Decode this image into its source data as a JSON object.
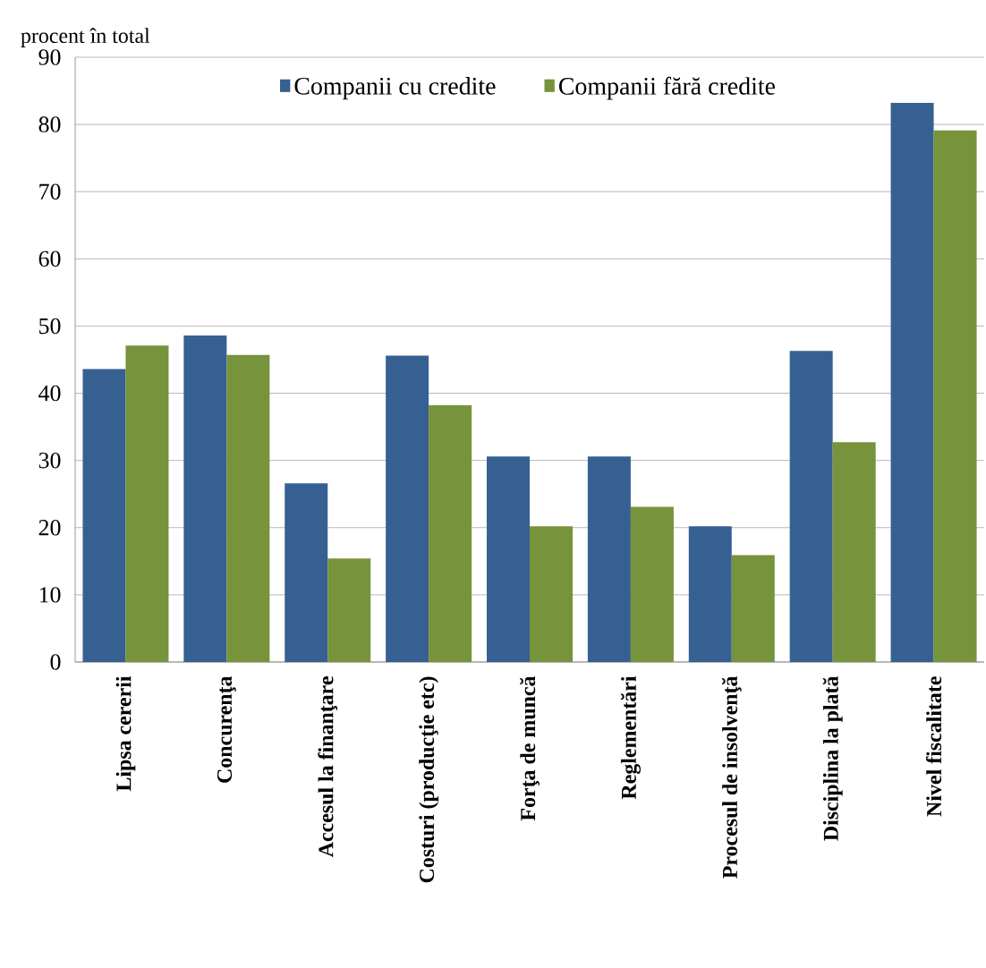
{
  "chart_data": {
    "type": "bar",
    "ylabel": "procent în total",
    "categories": [
      "Lipsa cererii",
      "Concurenţa",
      "Accesul la finanţare",
      "Costuri (producţie etc)",
      "Forţa de muncă",
      "Reglementări",
      "Procesul de insolvenţă",
      "Disciplina la plată",
      "Nivel fiscalitate"
    ],
    "series": [
      {
        "name": "Companii cu credite",
        "color": "#376092",
        "values": [
          43.6,
          48.6,
          26.6,
          45.6,
          30.6,
          30.6,
          20.2,
          46.3,
          83.2
        ]
      },
      {
        "name": "Companii fără credite",
        "color": "#77933c",
        "values": [
          47.1,
          45.7,
          15.4,
          38.2,
          20.2,
          23.1,
          15.9,
          32.7,
          79.1
        ]
      }
    ],
    "ylim": [
      0,
      90
    ],
    "yticks": [
      0,
      10,
      20,
      30,
      40,
      50,
      60,
      70,
      80,
      90
    ],
    "grid": "y",
    "legend": "top"
  }
}
